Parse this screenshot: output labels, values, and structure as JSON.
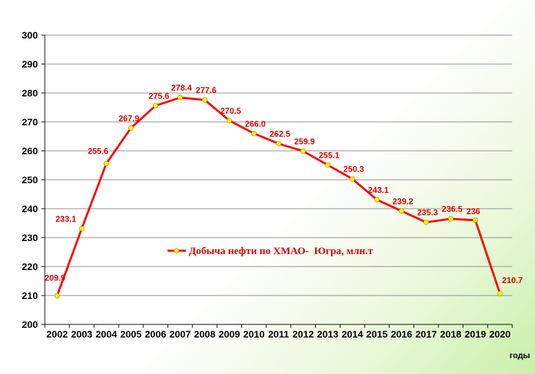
{
  "chart_data": {
    "type": "line",
    "x": [
      "2002",
      "2003",
      "2004",
      "2005",
      "2006",
      "2007",
      "2008",
      "2009",
      "2010",
      "2011",
      "2012",
      "2013",
      "2014",
      "2015",
      "2016",
      "2017",
      "2018",
      "2019",
      "2020"
    ],
    "series": [
      {
        "name": "Добыча нефти по ХМАО-  Югра, млн.т",
        "values": [
          209.9,
          233.1,
          255.6,
          267.9,
          275.6,
          278.4,
          277.6,
          270.5,
          266.0,
          262.5,
          259.9,
          255.1,
          250.3,
          243.1,
          239.2,
          235.3,
          236.5,
          236,
          210.7
        ],
        "labels": [
          "209.9",
          "233.1",
          "255.6",
          "267.9",
          "275.6",
          "278.4",
          "277.6",
          "270.5",
          "266.0",
          "262.5",
          "259.9",
          "255.1",
          "250.3",
          "243.1",
          "239.2",
          "235.3",
          "236.5",
          "236",
          "210.7"
        ],
        "color": "#ff0000",
        "marker_color": "#f5f500"
      }
    ],
    "xlabel": "годы",
    "ylabel": "",
    "ylim": [
      200,
      300
    ],
    "yticks": [
      "200",
      "210",
      "220",
      "230",
      "240",
      "250",
      "260",
      "270",
      "280",
      "290",
      "300"
    ],
    "grid": true,
    "legend": "center"
  }
}
